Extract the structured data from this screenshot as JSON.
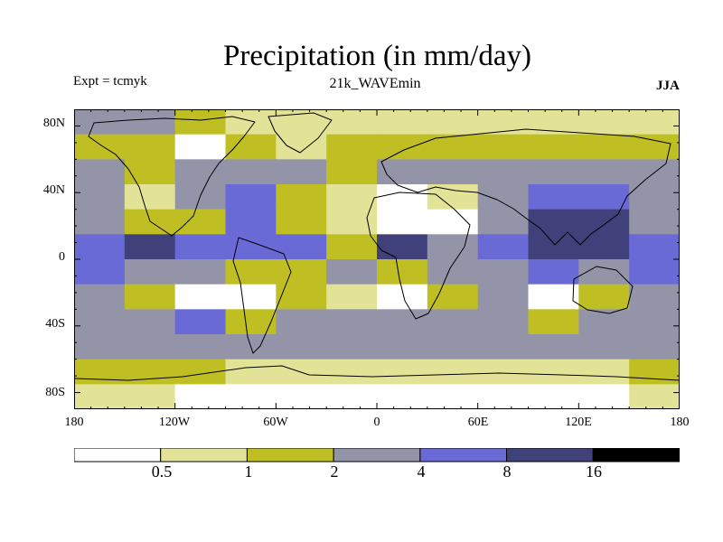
{
  "title": "Precipitation (in mm/day)",
  "experiment": "Expt = tcmyk",
  "subtitle": "21k_WAVEmin",
  "season": "JJA",
  "y_axis_labels": [
    "80N",
    "40N",
    "0",
    "40S",
    "80S"
  ],
  "x_axis_labels": [
    "180",
    "120W",
    "60W",
    "0",
    "60E",
    "120E",
    "180"
  ],
  "colorbar": {
    "labels": [
      "0.5",
      "1",
      "2",
      "4",
      "8",
      "16"
    ],
    "colors": [
      "#ffffff",
      "#e3e397",
      "#bfbf24",
      "#9494a8",
      "#6a6ad6",
      "#40407a",
      "#000000"
    ]
  },
  "chart_data": {
    "type": "heatmap",
    "title": "Precipitation (in mm/day)",
    "units": "mm/day",
    "levels": [
      0.5,
      1,
      2,
      4,
      8,
      16
    ],
    "xlim": [
      -180,
      180
    ],
    "ylim": [
      -90,
      90
    ],
    "x_ticks": [
      -180,
      -120,
      -60,
      0,
      60,
      120,
      180
    ],
    "y_ticks": [
      80,
      40,
      0,
      -40,
      -80
    ],
    "lon_step": 30,
    "lat_step": 15,
    "rows_lat": [
      82.5,
      67.5,
      52.5,
      37.5,
      22.5,
      7.5,
      -7.5,
      -22.5,
      -37.5,
      -52.5,
      -67.5,
      -82.5
    ],
    "grid": [
      [
        3,
        3,
        2,
        1,
        1,
        1,
        1,
        1,
        1,
        1,
        1,
        1
      ],
      [
        2,
        2,
        0,
        2,
        1,
        2,
        2,
        2,
        2,
        2,
        2,
        2
      ],
      [
        3,
        2,
        3,
        3,
        3,
        2,
        3,
        3,
        3,
        3,
        3,
        3
      ],
      [
        3,
        1,
        3,
        4,
        2,
        1,
        0,
        1,
        3,
        4,
        4,
        3
      ],
      [
        3,
        2,
        2,
        4,
        2,
        1,
        0,
        0,
        3,
        5,
        5,
        3
      ],
      [
        4,
        5,
        4,
        4,
        4,
        2,
        5,
        3,
        4,
        5,
        5,
        4
      ],
      [
        4,
        3,
        3,
        2,
        2,
        3,
        2,
        3,
        3,
        4,
        3,
        4
      ],
      [
        3,
        2,
        0,
        0,
        2,
        1,
        0,
        2,
        3,
        0,
        2,
        3
      ],
      [
        3,
        3,
        4,
        2,
        3,
        3,
        3,
        3,
        3,
        2,
        3,
        3
      ],
      [
        3,
        3,
        3,
        3,
        3,
        3,
        3,
        3,
        3,
        3,
        3,
        3
      ],
      [
        2,
        2,
        2,
        1,
        1,
        1,
        1,
        1,
        1,
        1,
        1,
        2
      ],
      [
        1,
        1,
        0,
        0,
        0,
        0,
        0,
        0,
        0,
        0,
        0,
        1
      ]
    ]
  }
}
